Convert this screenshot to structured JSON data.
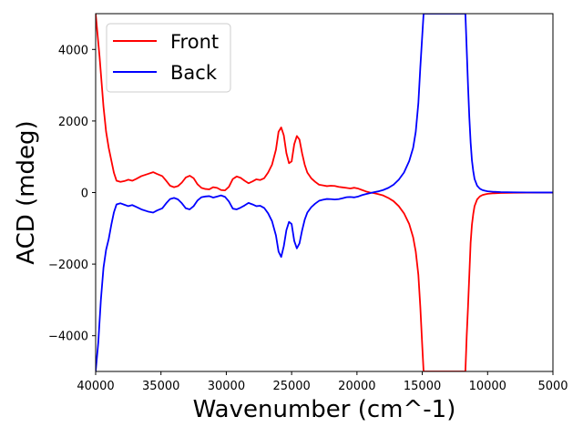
{
  "chart_data": {
    "type": "line",
    "xlabel": "Wavenumber (cm^-1)",
    "ylabel": "ACD (mdeg)",
    "xlim": [
      40000,
      5000
    ],
    "ylim": [
      -5000,
      5000
    ],
    "x_ticks": [
      40000,
      35000,
      30000,
      25000,
      20000,
      15000,
      10000,
      5000
    ],
    "y_ticks": [
      -4000,
      -2000,
      0,
      2000,
      4000
    ],
    "x_tick_labels": [
      "40000",
      "35000",
      "30000",
      "25000",
      "20000",
      "15000",
      "10000",
      "5000"
    ],
    "y_tick_labels": [
      "−4000",
      "−2000",
      "0",
      "2000",
      "4000"
    ],
    "grid": false,
    "legend_position": "top-left",
    "series": [
      {
        "name": "Front",
        "color": "#ff0000",
        "points": [
          [
            40000,
            5000
          ],
          [
            39700,
            3800
          ],
          [
            39400,
            2400
          ],
          [
            39200,
            1700
          ],
          [
            39000,
            1250
          ],
          [
            38800,
            900
          ],
          [
            38600,
            550
          ],
          [
            38400,
            330
          ],
          [
            38100,
            300
          ],
          [
            37800,
            320
          ],
          [
            37500,
            360
          ],
          [
            37200,
            330
          ],
          [
            36900,
            380
          ],
          [
            36500,
            460
          ],
          [
            36000,
            520
          ],
          [
            35600,
            570
          ],
          [
            35300,
            520
          ],
          [
            34900,
            460
          ],
          [
            34600,
            330
          ],
          [
            34300,
            190
          ],
          [
            34000,
            150
          ],
          [
            33700,
            180
          ],
          [
            33400,
            280
          ],
          [
            33100,
            420
          ],
          [
            32800,
            470
          ],
          [
            32500,
            400
          ],
          [
            32200,
            230
          ],
          [
            31900,
            130
          ],
          [
            31600,
            100
          ],
          [
            31300,
            90
          ],
          [
            31000,
            150
          ],
          [
            30700,
            130
          ],
          [
            30400,
            70
          ],
          [
            30100,
            60
          ],
          [
            29800,
            160
          ],
          [
            29500,
            380
          ],
          [
            29200,
            450
          ],
          [
            28900,
            410
          ],
          [
            28600,
            330
          ],
          [
            28300,
            260
          ],
          [
            28000,
            310
          ],
          [
            27700,
            370
          ],
          [
            27400,
            350
          ],
          [
            27100,
            400
          ],
          [
            26800,
            560
          ],
          [
            26500,
            780
          ],
          [
            26200,
            1200
          ],
          [
            26000,
            1700
          ],
          [
            25800,
            1820
          ],
          [
            25600,
            1600
          ],
          [
            25400,
            1100
          ],
          [
            25200,
            820
          ],
          [
            25000,
            870
          ],
          [
            24800,
            1350
          ],
          [
            24600,
            1580
          ],
          [
            24400,
            1480
          ],
          [
            24200,
            1100
          ],
          [
            24000,
            780
          ],
          [
            23800,
            560
          ],
          [
            23500,
            400
          ],
          [
            23200,
            300
          ],
          [
            22900,
            220
          ],
          [
            22600,
            200
          ],
          [
            22300,
            180
          ],
          [
            22000,
            190
          ],
          [
            21700,
            185
          ],
          [
            21400,
            160
          ],
          [
            21100,
            145
          ],
          [
            20800,
            130
          ],
          [
            20500,
            115
          ],
          [
            20200,
            135
          ],
          [
            19900,
            110
          ],
          [
            19600,
            70
          ],
          [
            19300,
            30
          ],
          [
            19000,
            0
          ],
          [
            18700,
            -15
          ],
          [
            18400,
            -40
          ],
          [
            18000,
            -80
          ],
          [
            17600,
            -150
          ],
          [
            17200,
            -240
          ],
          [
            16800,
            -380
          ],
          [
            16400,
            -580
          ],
          [
            16000,
            -880
          ],
          [
            15700,
            -1250
          ],
          [
            15500,
            -1650
          ],
          [
            15300,
            -2300
          ],
          [
            15150,
            -3200
          ],
          [
            15000,
            -4300
          ],
          [
            14900,
            -5000
          ],
          [
            11700,
            -5000
          ],
          [
            11600,
            -4000
          ],
          [
            11500,
            -3200
          ],
          [
            11400,
            -2300
          ],
          [
            11300,
            -1400
          ],
          [
            11200,
            -900
          ],
          [
            11100,
            -600
          ],
          [
            11000,
            -380
          ],
          [
            10800,
            -190
          ],
          [
            10600,
            -110
          ],
          [
            10400,
            -70
          ],
          [
            10200,
            -50
          ],
          [
            10000,
            -35
          ],
          [
            9500,
            -20
          ],
          [
            9000,
            -12
          ],
          [
            8000,
            -6
          ],
          [
            7000,
            -3
          ],
          [
            6000,
            -2
          ],
          [
            5000,
            -1
          ]
        ]
      },
      {
        "name": "Back",
        "color": "#0000ff",
        "points": [
          [
            40000,
            -5000
          ],
          [
            39800,
            -4200
          ],
          [
            39600,
            -3000
          ],
          [
            39400,
            -2100
          ],
          [
            39200,
            -1600
          ],
          [
            39000,
            -1300
          ],
          [
            38800,
            -900
          ],
          [
            38600,
            -550
          ],
          [
            38400,
            -330
          ],
          [
            38100,
            -300
          ],
          [
            37800,
            -340
          ],
          [
            37500,
            -380
          ],
          [
            37200,
            -350
          ],
          [
            36900,
            -400
          ],
          [
            36500,
            -470
          ],
          [
            36000,
            -530
          ],
          [
            35600,
            -560
          ],
          [
            35300,
            -500
          ],
          [
            34900,
            -440
          ],
          [
            34600,
            -300
          ],
          [
            34300,
            -180
          ],
          [
            34000,
            -150
          ],
          [
            33700,
            -190
          ],
          [
            33400,
            -300
          ],
          [
            33100,
            -440
          ],
          [
            32800,
            -470
          ],
          [
            32500,
            -380
          ],
          [
            32200,
            -220
          ],
          [
            31900,
            -130
          ],
          [
            31600,
            -110
          ],
          [
            31300,
            -100
          ],
          [
            31000,
            -140
          ],
          [
            30700,
            -110
          ],
          [
            30400,
            -80
          ],
          [
            30100,
            -120
          ],
          [
            29800,
            -250
          ],
          [
            29500,
            -450
          ],
          [
            29200,
            -470
          ],
          [
            28900,
            -420
          ],
          [
            28600,
            -360
          ],
          [
            28300,
            -290
          ],
          [
            28000,
            -330
          ],
          [
            27700,
            -380
          ],
          [
            27400,
            -370
          ],
          [
            27100,
            -430
          ],
          [
            26800,
            -580
          ],
          [
            26500,
            -800
          ],
          [
            26200,
            -1200
          ],
          [
            26000,
            -1650
          ],
          [
            25800,
            -1800
          ],
          [
            25600,
            -1500
          ],
          [
            25400,
            -1050
          ],
          [
            25200,
            -820
          ],
          [
            25000,
            -880
          ],
          [
            24800,
            -1350
          ],
          [
            24600,
            -1560
          ],
          [
            24400,
            -1420
          ],
          [
            24200,
            -1060
          ],
          [
            24000,
            -760
          ],
          [
            23800,
            -560
          ],
          [
            23500,
            -410
          ],
          [
            23200,
            -310
          ],
          [
            22900,
            -230
          ],
          [
            22600,
            -200
          ],
          [
            22300,
            -180
          ],
          [
            22000,
            -185
          ],
          [
            21700,
            -195
          ],
          [
            21400,
            -185
          ],
          [
            21100,
            -160
          ],
          [
            20800,
            -130
          ],
          [
            20500,
            -125
          ],
          [
            20200,
            -135
          ],
          [
            19900,
            -110
          ],
          [
            19600,
            -70
          ],
          [
            19300,
            -40
          ],
          [
            19000,
            -15
          ],
          [
            18700,
            10
          ],
          [
            18400,
            30
          ],
          [
            18000,
            70
          ],
          [
            17600,
            130
          ],
          [
            17200,
            220
          ],
          [
            16800,
            360
          ],
          [
            16400,
            560
          ],
          [
            16000,
            880
          ],
          [
            15700,
            1250
          ],
          [
            15500,
            1700
          ],
          [
            15300,
            2500
          ],
          [
            15150,
            3500
          ],
          [
            15000,
            4400
          ],
          [
            14900,
            5000
          ],
          [
            11700,
            5000
          ],
          [
            11600,
            4000
          ],
          [
            11500,
            3000
          ],
          [
            11400,
            2100
          ],
          [
            11300,
            1400
          ],
          [
            11200,
            900
          ],
          [
            11100,
            600
          ],
          [
            11000,
            380
          ],
          [
            10800,
            190
          ],
          [
            10600,
            110
          ],
          [
            10400,
            70
          ],
          [
            10200,
            50
          ],
          [
            10000,
            35
          ],
          [
            9500,
            20
          ],
          [
            9000,
            12
          ],
          [
            8000,
            6
          ],
          [
            7000,
            3
          ],
          [
            6000,
            2
          ],
          [
            5000,
            1
          ]
        ]
      }
    ]
  }
}
